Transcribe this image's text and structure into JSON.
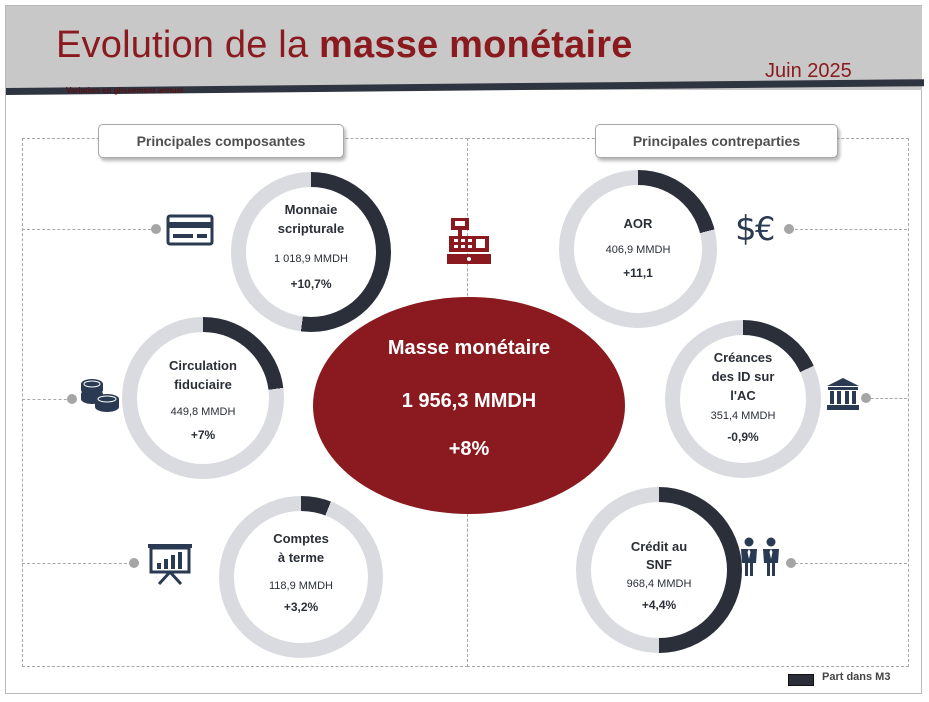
{
  "header": {
    "title_regular": "Evolution de la ",
    "title_bold": "masse monétaire",
    "subtitle": "Variation en glissement annuel",
    "date": "Juin 2025"
  },
  "sections": {
    "left": "Principales composantes",
    "right": "Principales contreparties"
  },
  "center": {
    "title": "Masse monétaire",
    "value": "1 956,3 MMDH",
    "change": "+8%"
  },
  "legend": {
    "label": "Part dans M3"
  },
  "colors": {
    "accent": "#8a1a1f",
    "share": "#2a2f3a",
    "rest": "#d9dbe0"
  },
  "icons": {
    "monnaie_scripturale": "credit-card-icon",
    "circulation_fiduciaire": "coins-icon",
    "comptes_a_terme": "presentation-chart-icon",
    "center": "cash-register-icon",
    "aor": "dollar-euro-icon",
    "creances": "bank-icon",
    "credit_snf": "people-icon"
  },
  "chart_data": {
    "type": "donut",
    "title": "Evolution de la masse monétaire",
    "subtitle": "Variation en glissement annuel",
    "total": {
      "label": "Masse monétaire",
      "value": 1956.3,
      "unit": "MMDH",
      "change": "+8%"
    },
    "components": [
      {
        "key": "monnaie_scripturale",
        "name_lines": [
          "Monnaie",
          "scripturale"
        ],
        "value": 1018.9,
        "value_label": "1 018,9 MMDH",
        "change": "+10,7%",
        "share": 0.52
      },
      {
        "key": "circulation_fiduciaire",
        "name_lines": [
          "Circulation",
          "fiduciaire"
        ],
        "value": 449.8,
        "value_label": "449,8 MMDH",
        "change": "+7%",
        "share": 0.23
      },
      {
        "key": "comptes_a_terme",
        "name_lines": [
          "Comptes",
          "à terme"
        ],
        "value": 118.9,
        "value_label": "118,9 MMDH",
        "change": "+3,2%",
        "share": 0.06
      }
    ],
    "counterparts": [
      {
        "key": "aor",
        "name_lines": [
          "AOR"
        ],
        "value": 406.9,
        "value_label": "406,9 MMDH",
        "change": "+11,1",
        "share": 0.21
      },
      {
        "key": "creances",
        "name_lines": [
          "Créances",
          "des ID sur",
          "l'AC"
        ],
        "value": 351.4,
        "value_label": "351,4 MMDH",
        "change": "-0,9%",
        "share": 0.18
      },
      {
        "key": "credit_snf",
        "name_lines": [
          "Crédit au",
          "SNF"
        ],
        "value": 968.4,
        "value_label": "968,4 MMDH",
        "change": "+4,4%",
        "share": 0.5
      }
    ],
    "legend": [
      "Part dans M3"
    ]
  }
}
